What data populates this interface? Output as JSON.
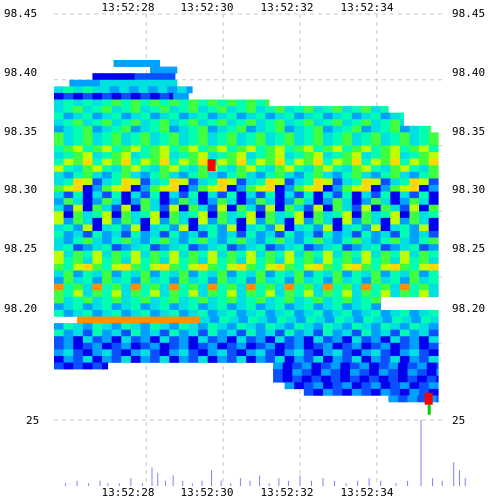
{
  "chart_data": {
    "type": "heatmap",
    "title": "",
    "xlabel": "",
    "ylabel": "",
    "x_ticks": [
      "13:52:28",
      "13:52:30",
      "13:52:32",
      "13:52:34"
    ],
    "y_ticks": [
      "98.45",
      "98.40",
      "98.35",
      "98.30",
      "98.25",
      "98.20"
    ],
    "volume_tick": "25",
    "x_range": [
      "13:52:25.6",
      "13:52:35.8"
    ],
    "ylim": [
      98.155,
      98.45
    ],
    "volume_max": 25,
    "grid": true,
    "colors": {
      "background": "#ffffff",
      "grid": "#c8c8c8",
      "volume": "#8080f0",
      "last_trade": "#ff0000",
      "last_tick": "#00cc00"
    },
    "color_scale": [
      "#0000ee",
      "#0a50ff",
      "#00a0ff",
      "#00e0e0",
      "#00ffb0",
      "#40ff40",
      "#c0ff00",
      "#ffd800",
      "#ff9000",
      "#ff0000"
    ],
    "bands": [
      {
        "price": 98.4125,
        "start": 1.55,
        "end": 2.75,
        "level": [
          2
        ]
      },
      {
        "price": 98.4075,
        "start": 2.5,
        "end": 3.2,
        "level": [
          2
        ]
      },
      {
        "price": 98.4025,
        "start": 1.0,
        "end": 2.1,
        "level": [
          0
        ]
      },
      {
        "price": 98.4025,
        "start": 2.1,
        "end": 3.15,
        "level": [
          1
        ]
      },
      {
        "price": 98.3975,
        "start": 0.4,
        "end": 1.2,
        "level": [
          2
        ]
      },
      {
        "price": 98.3975,
        "start": 1.2,
        "end": 3.2,
        "level": [
          3
        ]
      },
      {
        "price": 98.3925,
        "start": 0.0,
        "end": 1.2,
        "level": [
          3,
          4
        ]
      },
      {
        "price": 98.3925,
        "start": 1.2,
        "end": 3.6,
        "level": [
          2,
          3
        ]
      },
      {
        "price": 98.3875,
        "start": 0.0,
        "end": 3.1,
        "level": [
          0,
          1
        ]
      },
      {
        "price": 98.3875,
        "start": 3.1,
        "end": 3.5,
        "level": [
          2
        ]
      },
      {
        "price": 98.3825,
        "start": 0.0,
        "end": 1.5,
        "level": [
          3,
          4
        ]
      },
      {
        "price": 98.3825,
        "start": 1.5,
        "end": 5.6,
        "level": [
          4,
          5
        ]
      },
      {
        "price": 98.3775,
        "start": 0.0,
        "end": 8.7,
        "level": [
          3,
          4,
          5
        ]
      },
      {
        "price": 98.3725,
        "start": 0.0,
        "end": 9.1,
        "level": [
          3,
          4,
          2
        ]
      },
      {
        "price": 98.3675,
        "start": 0.0,
        "end": 9.1,
        "level": [
          4,
          5,
          3
        ]
      },
      {
        "price": 98.3625,
        "start": 0.0,
        "end": 9.8,
        "level": [
          3,
          4,
          5,
          2
        ]
      },
      {
        "price": 98.3575,
        "start": 0.0,
        "end": 10.0,
        "level": [
          4,
          5,
          3
        ]
      },
      {
        "price": 98.3525,
        "start": 0.0,
        "end": 10.0,
        "level": [
          3,
          4,
          5
        ]
      },
      {
        "price": 98.3475,
        "start": 0.0,
        "end": 10.0,
        "level": [
          4,
          5,
          6
        ]
      },
      {
        "price": 98.3425,
        "start": 0.0,
        "end": 10.0,
        "level": [
          4,
          5,
          6,
          3
        ]
      },
      {
        "price": 98.3375,
        "start": 0.0,
        "end": 10.0,
        "level": [
          4,
          6,
          5,
          7
        ]
      },
      {
        "price": 98.3325,
        "start": 0.0,
        "end": 10.0,
        "level": [
          5,
          6,
          4,
          3
        ]
      },
      {
        "price": 98.3275,
        "start": 0.0,
        "end": 10.0,
        "level": [
          4,
          5,
          3,
          2
        ]
      },
      {
        "price": 98.3225,
        "start": 0.0,
        "end": 10.0,
        "level": [
          7,
          6,
          1,
          3,
          4
        ]
      },
      {
        "price": 98.3175,
        "start": 0.0,
        "end": 10.0,
        "level": [
          6,
          7,
          0,
          2,
          5
        ]
      },
      {
        "price": 98.3125,
        "start": 0.0,
        "end": 10.0,
        "level": [
          0,
          3,
          1,
          4
        ]
      },
      {
        "price": 98.3075,
        "start": 0.0,
        "end": 10.0,
        "level": [
          3,
          0,
          2,
          5
        ]
      },
      {
        "price": 98.3025,
        "start": 0.0,
        "end": 10.0,
        "level": [
          0,
          5,
          3,
          1,
          6
        ]
      },
      {
        "price": 98.2975,
        "start": 0.0,
        "end": 10.0,
        "level": [
          5,
          3,
          4,
          6,
          0
        ]
      },
      {
        "price": 98.2925,
        "start": 0.0,
        "end": 10.0,
        "level": [
          2,
          5,
          3,
          0,
          6
        ]
      },
      {
        "price": 98.2875,
        "start": 0.0,
        "end": 10.0,
        "level": [
          3,
          4,
          2,
          6,
          0
        ]
      },
      {
        "price": 98.2825,
        "start": 0.0,
        "end": 10.0,
        "level": [
          2,
          3,
          1,
          4
        ]
      },
      {
        "price": 98.2775,
        "start": 0.0,
        "end": 10.0,
        "level": [
          3,
          2,
          4,
          5
        ]
      },
      {
        "price": 98.2725,
        "start": 0.0,
        "end": 10.0,
        "level": [
          2,
          3,
          4,
          1
        ]
      },
      {
        "price": 98.2675,
        "start": 0.0,
        "end": 10.0,
        "level": [
          5,
          4,
          6,
          3
        ]
      },
      {
        "price": 98.2625,
        "start": 0.0,
        "end": 10.0,
        "level": [
          4,
          5,
          3,
          6
        ]
      },
      {
        "price": 98.2575,
        "start": 0.0,
        "end": 10.0,
        "level": [
          5,
          4,
          6,
          7
        ]
      },
      {
        "price": 98.2525,
        "start": 0.0,
        "end": 10.0,
        "level": [
          4,
          3,
          5,
          2
        ]
      },
      {
        "price": 98.2475,
        "start": 0.0,
        "end": 10.0,
        "level": [
          3,
          4,
          2,
          5
        ]
      },
      {
        "price": 98.2425,
        "start": 0.0,
        "end": 10.0,
        "level": [
          4,
          5,
          3,
          8
        ]
      },
      {
        "price": 98.2375,
        "start": 0.0,
        "end": 10.0,
        "level": [
          5,
          4,
          6,
          3
        ]
      },
      {
        "price": 98.2325,
        "start": 0.0,
        "end": 8.5,
        "level": [
          3,
          4,
          5
        ]
      },
      {
        "price": 98.2275,
        "start": 0.0,
        "end": 8.5,
        "level": [
          2,
          3,
          4
        ]
      },
      {
        "price": 98.2225,
        "start": 0.0,
        "end": 10.0,
        "level": [
          3,
          4,
          2
        ]
      },
      {
        "price": 98.2175,
        "start": 0.6,
        "end": 3.8,
        "level": [
          8
        ]
      },
      {
        "price": 98.2175,
        "start": 3.8,
        "end": 10.0,
        "level": [
          3,
          2,
          4
        ]
      },
      {
        "price": 98.2125,
        "start": 0.0,
        "end": 10.0,
        "level": [
          3,
          2,
          4
        ]
      },
      {
        "price": 98.2075,
        "start": 0.0,
        "end": 10.0,
        "level": [
          2,
          3,
          1,
          4
        ]
      },
      {
        "price": 98.2025,
        "start": 0.0,
        "end": 10.0,
        "level": [
          1,
          2,
          0,
          3
        ]
      },
      {
        "price": 98.1975,
        "start": 0.0,
        "end": 10.0,
        "level": [
          0,
          1,
          2
        ]
      },
      {
        "price": 98.1925,
        "start": 0.0,
        "end": 10.0,
        "level": [
          1,
          0,
          2,
          3
        ]
      },
      {
        "price": 98.1875,
        "start": 0.0,
        "end": 10.0,
        "level": [
          2,
          1,
          3,
          0
        ]
      },
      {
        "price": 98.1825,
        "start": 0.0,
        "end": 1.4,
        "level": [
          1,
          0
        ]
      },
      {
        "price": 98.1825,
        "start": 5.7,
        "end": 10.0,
        "level": [
          0,
          1,
          2
        ]
      },
      {
        "price": 98.1775,
        "start": 5.7,
        "end": 10.0,
        "level": [
          1,
          0,
          2
        ]
      },
      {
        "price": 98.1725,
        "start": 5.7,
        "end": 10.0,
        "level": [
          0,
          1
        ]
      },
      {
        "price": 98.1675,
        "start": 6.0,
        "end": 10.0,
        "level": [
          0,
          1,
          2
        ]
      },
      {
        "price": 98.1625,
        "start": 6.5,
        "end": 10.0,
        "level": [
          1,
          0,
          2
        ]
      },
      {
        "price": 98.1575,
        "start": 8.7,
        "end": 10.0,
        "level": [
          2,
          1
        ]
      }
    ],
    "trades": [
      {
        "price": 98.335,
        "time": 4.1,
        "level": 9
      },
      {
        "price": 98.1575,
        "time": 9.75,
        "level": 9
      }
    ],
    "volume": [
      {
        "time": 0.3,
        "v": 1
      },
      {
        "time": 0.6,
        "v": 2
      },
      {
        "time": 0.9,
        "v": 1
      },
      {
        "time": 1.2,
        "v": 2
      },
      {
        "time": 1.4,
        "v": 1
      },
      {
        "time": 1.7,
        "v": 1
      },
      {
        "time": 2.0,
        "v": 3
      },
      {
        "time": 2.3,
        "v": 1
      },
      {
        "time": 2.55,
        "v": 7
      },
      {
        "time": 2.7,
        "v": 5
      },
      {
        "time": 2.9,
        "v": 2
      },
      {
        "time": 3.1,
        "v": 4
      },
      {
        "time": 3.35,
        "v": 2
      },
      {
        "time": 3.6,
        "v": 1
      },
      {
        "time": 3.85,
        "v": 2
      },
      {
        "time": 4.1,
        "v": 6
      },
      {
        "time": 4.35,
        "v": 2
      },
      {
        "time": 4.6,
        "v": 1
      },
      {
        "time": 4.85,
        "v": 3
      },
      {
        "time": 5.1,
        "v": 2
      },
      {
        "time": 5.35,
        "v": 4
      },
      {
        "time": 5.6,
        "v": 1
      },
      {
        "time": 5.85,
        "v": 3
      },
      {
        "time": 6.1,
        "v": 2
      },
      {
        "time": 6.4,
        "v": 4
      },
      {
        "time": 6.7,
        "v": 2
      },
      {
        "time": 7.0,
        "v": 3
      },
      {
        "time": 7.3,
        "v": 2
      },
      {
        "time": 7.6,
        "v": 1
      },
      {
        "time": 7.9,
        "v": 2
      },
      {
        "time": 8.2,
        "v": 3
      },
      {
        "time": 8.5,
        "v": 2
      },
      {
        "time": 8.9,
        "v": 1
      },
      {
        "time": 9.2,
        "v": 2
      },
      {
        "time": 9.55,
        "v": 25
      },
      {
        "time": 9.85,
        "v": 3
      },
      {
        "time": 10.1,
        "v": 2
      },
      {
        "time": 10.4,
        "v": 9
      },
      {
        "time": 10.55,
        "v": 6
      },
      {
        "time": 10.7,
        "v": 3
      }
    ]
  }
}
